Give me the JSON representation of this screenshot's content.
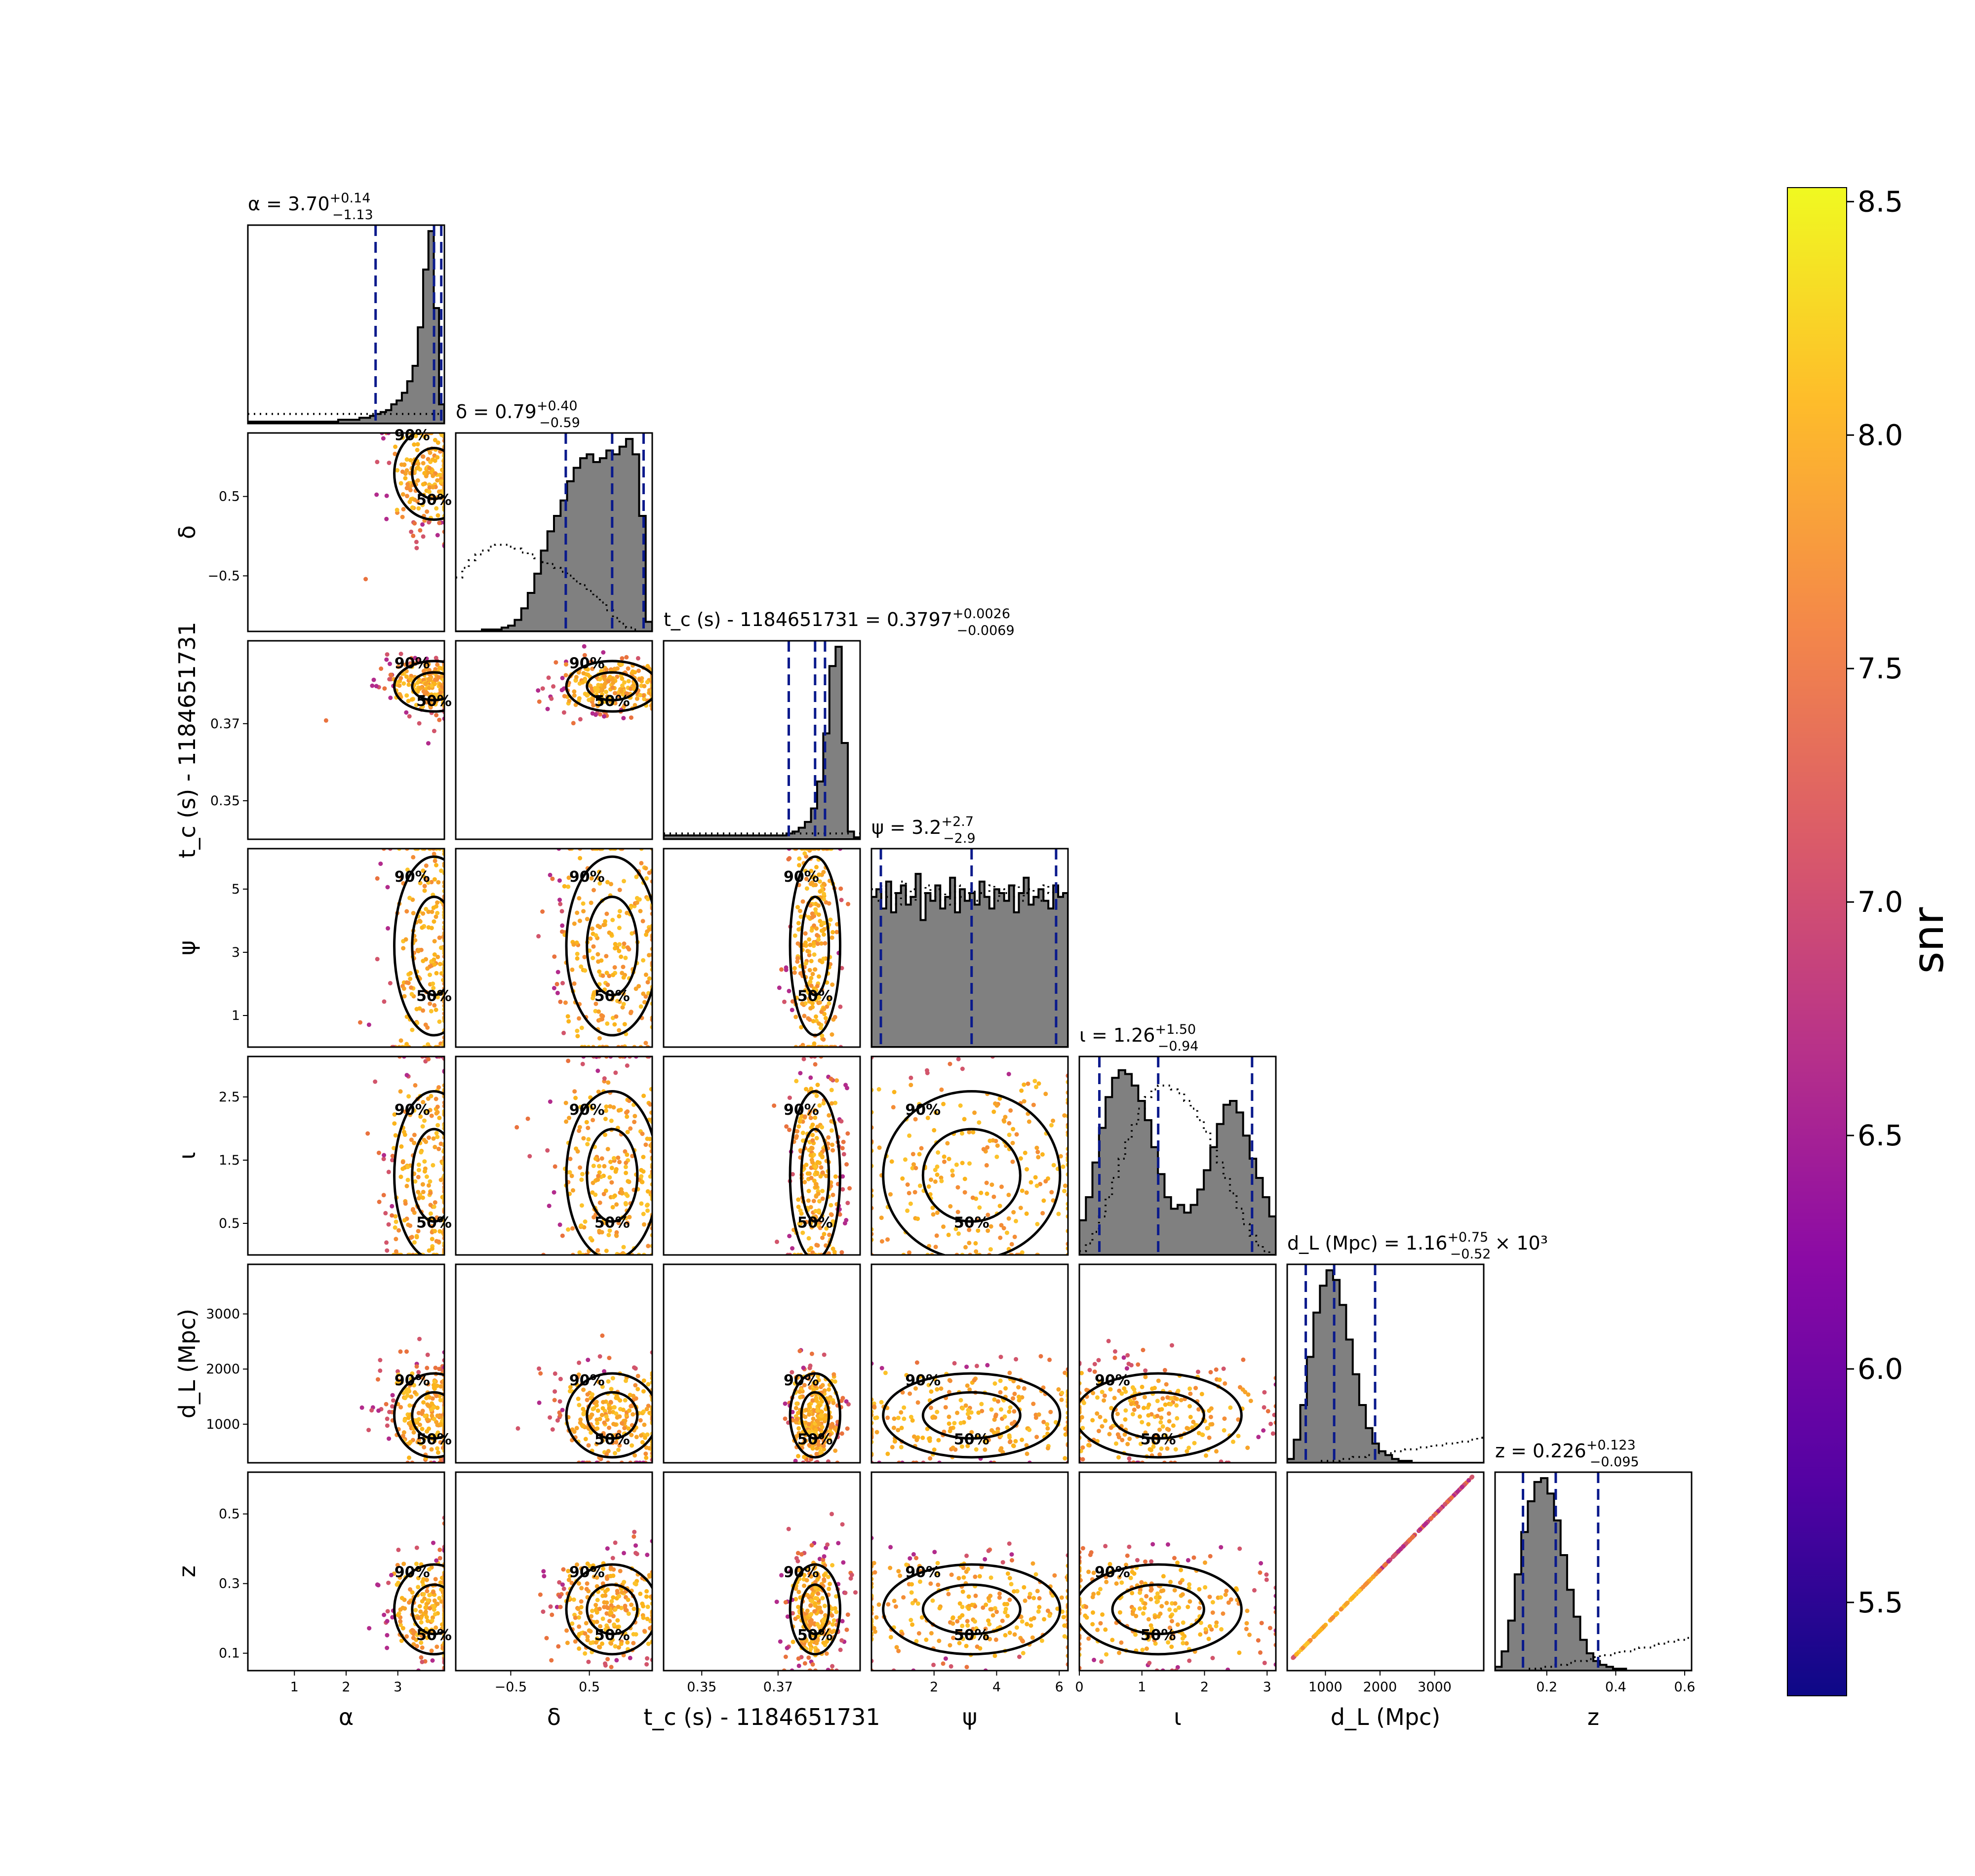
{
  "chart_data": {
    "type": "scatter",
    "subtype": "corner-plot",
    "colorbar": {
      "label": "snr",
      "range": [
        5.3,
        8.53
      ],
      "ticks": [
        "5.5",
        "6.0",
        "6.5",
        "7.0",
        "7.5",
        "8.0",
        "8.5"
      ],
      "colormap": "plasma"
    },
    "contour_levels": [
      "50%",
      "90%"
    ],
    "parameters": [
      {
        "key": "alpha",
        "xlabel": "α",
        "ylabel": "",
        "range": [
          0.1,
          3.9
        ],
        "ticks": [
          1,
          2,
          3
        ],
        "tick_labels": [
          "1",
          "2",
          "3"
        ],
        "median": 3.7,
        "lower": 2.57,
        "upper": 3.84,
        "title_lhs": "α = 3.70",
        "title_sup": "+0.14",
        "title_sub": "−1.13",
        "title_suffix": "",
        "hist_shape": [
          0.01,
          0.01,
          0.01,
          0.01,
          0.01,
          0.01,
          0.01,
          0.01,
          0.01,
          0.01,
          0.01,
          0.01,
          0.01,
          0.01,
          0.01,
          0.01,
          0.01,
          0.02,
          0.02,
          0.02,
          0.02,
          0.03,
          0.03,
          0.04,
          0.05,
          0.06,
          0.07,
          0.1,
          0.12,
          0.16,
          0.22,
          0.3,
          0.5,
          0.8,
          1.0,
          0.6,
          0.1
        ],
        "prior_shape": [
          0.05,
          0.05,
          0.05,
          0.05,
          0.05,
          0.05,
          0.05,
          0.05,
          0.05,
          0.05,
          0.05,
          0.05,
          0.05,
          0.05,
          0.05,
          0.05,
          0.05,
          0.05,
          0.05,
          0.05,
          0.05,
          0.05,
          0.05,
          0.05,
          0.05,
          0.05,
          0.05,
          0.05,
          0.05,
          0.05,
          0.05,
          0.05,
          0.05,
          0.05,
          0.05,
          0.05,
          0.05
        ]
      },
      {
        "key": "delta",
        "xlabel": "δ",
        "ylabel": "δ",
        "range": [
          -1.2,
          1.3
        ],
        "ticks": [
          -0.5,
          0.5
        ],
        "tick_labels": [
          "−0.5",
          "0.5"
        ],
        "median": 0.79,
        "lower": 0.2,
        "upper": 1.19,
        "title_lhs": "δ = 0.79",
        "title_sup": "+0.40",
        "title_sub": "−0.59",
        "title_suffix": "",
        "hist_shape": [
          0.0,
          0.0,
          0.0,
          0.0,
          0.01,
          0.01,
          0.01,
          0.02,
          0.03,
          0.06,
          0.12,
          0.2,
          0.3,
          0.42,
          0.52,
          0.6,
          0.68,
          0.78,
          0.85,
          0.9,
          0.92,
          0.88,
          0.9,
          0.94,
          0.92,
          0.96,
          1.0,
          0.92,
          0.6,
          0.05
        ],
        "prior_shape": [
          0.28,
          0.33,
          0.37,
          0.4,
          0.42,
          0.44,
          0.45,
          0.45,
          0.44,
          0.43,
          0.41,
          0.4,
          0.38,
          0.36,
          0.35,
          0.33,
          0.31,
          0.29,
          0.26,
          0.24,
          0.21,
          0.18,
          0.15,
          0.11,
          0.07,
          0.04,
          0.02,
          0.01,
          0.0,
          0.0
        ]
      },
      {
        "key": "tc",
        "xlabel": "t_c (s) - 1184651731",
        "ylabel": "t_c (s) - 1184651731",
        "range": [
          0.34,
          0.3915
        ],
        "ticks": [
          0.35,
          0.37
        ],
        "tick_labels": [
          "0.35",
          "0.37"
        ],
        "median": 0.3797,
        "lower": 0.3728,
        "upper": 0.3823,
        "title_lhs": "t_c (s) - 1184651731 = 0.3797",
        "title_sup": "+0.0026",
        "title_sub": "−0.0069",
        "title_suffix": "",
        "hist_shape": [
          0.02,
          0.02,
          0.02,
          0.02,
          0.02,
          0.02,
          0.02,
          0.02,
          0.02,
          0.02,
          0.02,
          0.02,
          0.02,
          0.02,
          0.02,
          0.02,
          0.02,
          0.02,
          0.02,
          0.02,
          0.03,
          0.04,
          0.06,
          0.09,
          0.16,
          0.3,
          0.55,
          0.9,
          1.0,
          0.5,
          0.04,
          0.01
        ],
        "prior_shape": [
          0.03,
          0.03,
          0.03,
          0.03,
          0.03,
          0.03,
          0.03,
          0.03,
          0.03,
          0.03,
          0.03,
          0.03,
          0.03,
          0.03,
          0.03,
          0.03,
          0.03,
          0.03,
          0.03,
          0.03,
          0.03,
          0.03,
          0.03,
          0.03,
          0.03,
          0.03,
          0.03,
          0.03,
          0.03,
          0.03,
          0.03,
          0.03
        ]
      },
      {
        "key": "psi",
        "xlabel": "ψ",
        "ylabel": "ψ",
        "range": [
          0.0,
          6.28
        ],
        "ticks": [
          2,
          4,
          6
        ],
        "tick_labels": [
          "2",
          "4",
          "6"
        ],
        "yticks": [
          1,
          3,
          5
        ],
        "ytick_labels": [
          "1",
          "3",
          "5"
        ],
        "median": 3.2,
        "lower": 0.3,
        "upper": 5.9,
        "title_lhs": "ψ = 3.2",
        "title_sup": "+2.7",
        "title_sub": "−2.9",
        "title_suffix": "",
        "hist_shape": [
          0.78,
          0.82,
          0.72,
          0.86,
          0.7,
          0.8,
          0.84,
          0.74,
          0.78,
          0.9,
          0.66,
          0.8,
          0.76,
          0.84,
          0.72,
          0.78,
          0.88,
          0.7,
          0.82,
          0.76,
          0.8,
          0.74,
          0.86,
          0.78,
          0.72,
          0.82,
          0.8,
          0.76,
          0.84,
          0.7,
          0.8,
          0.88,
          0.74,
          0.78,
          0.82,
          0.76,
          0.72,
          0.84,
          0.78,
          0.8
        ],
        "prior_shape": [
          0.82,
          0.76,
          0.84,
          0.78,
          0.8,
          0.74,
          0.86,
          0.78,
          0.82,
          0.76,
          0.8,
          0.84,
          0.78,
          0.82,
          0.76,
          0.8,
          0.74,
          0.84,
          0.78,
          0.8,
          0.82,
          0.76,
          0.8,
          0.78,
          0.84,
          0.76,
          0.82,
          0.8,
          0.78,
          0.84,
          0.76,
          0.8,
          0.82,
          0.78,
          0.76,
          0.84,
          0.8,
          0.82,
          0.78,
          0.8
        ]
      },
      {
        "key": "iota",
        "xlabel": "ι",
        "ylabel": "ι",
        "range": [
          0.0,
          3.14
        ],
        "ticks": [
          0,
          1,
          2,
          3
        ],
        "tick_labels": [
          "0",
          "1",
          "2",
          "3"
        ],
        "yticks": [
          0.5,
          1.5,
          2.5
        ],
        "ytick_labels": [
          "0.5",
          "1.5",
          "2.5"
        ],
        "median": 1.26,
        "lower": 0.32,
        "upper": 2.76,
        "title_lhs": "ι = 1.26",
        "title_sup": "+1.50",
        "title_sub": "−0.94",
        "title_suffix": "",
        "hist_shape": [
          0.18,
          0.3,
          0.48,
          0.66,
          0.82,
          0.92,
          0.96,
          0.94,
          0.88,
          0.8,
          0.7,
          0.56,
          0.42,
          0.3,
          0.24,
          0.26,
          0.22,
          0.26,
          0.34,
          0.44,
          0.56,
          0.68,
          0.78,
          0.8,
          0.74,
          0.62,
          0.5,
          0.4,
          0.3,
          0.2
        ],
        "prior_shape": [
          0.02,
          0.06,
          0.12,
          0.2,
          0.3,
          0.4,
          0.5,
          0.6,
          0.68,
          0.76,
          0.82,
          0.86,
          0.88,
          0.88,
          0.86,
          0.84,
          0.8,
          0.76,
          0.7,
          0.64,
          0.56,
          0.48,
          0.4,
          0.32,
          0.24,
          0.16,
          0.1,
          0.05,
          0.02,
          0.0
        ]
      },
      {
        "key": "dL",
        "xlabel": "d_L (Mpc)",
        "ylabel": "d_L (Mpc)",
        "range": [
          300,
          3900
        ],
        "ticks": [
          1000,
          2000,
          3000
        ],
        "tick_labels": [
          "1000",
          "2000",
          "3000"
        ],
        "median": 1160,
        "lower": 640,
        "upper": 1910,
        "title_lhs": "d_L (Mpc) = 1.16",
        "title_sup": "+0.75",
        "title_sub": "−0.52",
        "title_suffix": "× 10³",
        "hist_shape": [
          0.02,
          0.12,
          0.3,
          0.55,
          0.78,
          0.92,
          1.0,
          0.95,
          0.82,
          0.64,
          0.46,
          0.3,
          0.18,
          0.1,
          0.06,
          0.04,
          0.02,
          0.01,
          0.01,
          0.0,
          0.0,
          0.0,
          0.0,
          0.0,
          0.0,
          0.0,
          0.0,
          0.0,
          0.0,
          0.0
        ],
        "prior_shape": [
          0.0,
          0.0,
          0.0,
          0.0,
          0.0,
          0.01,
          0.01,
          0.01,
          0.02,
          0.02,
          0.03,
          0.03,
          0.04,
          0.04,
          0.05,
          0.05,
          0.06,
          0.06,
          0.07,
          0.07,
          0.08,
          0.08,
          0.09,
          0.09,
          0.1,
          0.1,
          0.11,
          0.11,
          0.12,
          0.13
        ]
      },
      {
        "key": "z",
        "xlabel": "z",
        "ylabel": "z",
        "range": [
          0.05,
          0.62
        ],
        "ticks": [
          0.2,
          0.4,
          0.6
        ],
        "tick_labels": [
          "0.2",
          "0.4",
          "0.6"
        ],
        "yticks": [
          0.1,
          0.3,
          0.5
        ],
        "ytick_labels": [
          "0.1",
          "0.3",
          "0.5"
        ],
        "median": 0.226,
        "lower": 0.131,
        "upper": 0.349,
        "title_lhs": "z = 0.226",
        "title_sup": "+0.123",
        "title_sub": "−0.095",
        "title_suffix": "",
        "hist_shape": [
          0.02,
          0.1,
          0.26,
          0.5,
          0.72,
          0.88,
          0.98,
          1.0,
          0.92,
          0.78,
          0.6,
          0.42,
          0.28,
          0.16,
          0.09,
          0.05,
          0.03,
          0.02,
          0.01,
          0.01,
          0.0,
          0.0,
          0.0,
          0.0,
          0.0,
          0.0,
          0.0,
          0.0,
          0.0,
          0.0
        ],
        "prior_shape": [
          0.0,
          0.0,
          0.0,
          0.0,
          0.0,
          0.01,
          0.01,
          0.02,
          0.02,
          0.03,
          0.03,
          0.04,
          0.05,
          0.05,
          0.06,
          0.07,
          0.08,
          0.08,
          0.09,
          0.1,
          0.1,
          0.11,
          0.12,
          0.12,
          0.13,
          0.14,
          0.15,
          0.15,
          0.16,
          0.17
        ]
      }
    ],
    "colors": {
      "histogram_fill": "#808080",
      "credible_lines": "#0a1a8c",
      "contours": "#000000",
      "scatter_core": "#f5a623",
      "scatter_outlier": "#c2327a"
    }
  }
}
